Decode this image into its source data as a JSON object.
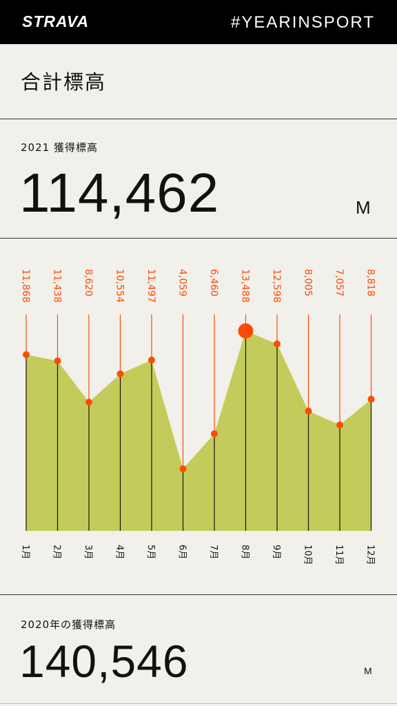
{
  "header": {
    "logo_text": "STRAVA",
    "hashtag": "#YEARINSPORT"
  },
  "section_title": "合計標高",
  "current": {
    "label": "2021 獲得標高",
    "value": "114,462",
    "unit": "M"
  },
  "previous": {
    "label": "2020年の獲得標高",
    "value": "140,546",
    "unit": "M"
  },
  "colors": {
    "accent": "#fc4c02",
    "area_fill": "#c3cc5a",
    "background": "#f2f0eb",
    "topbar": "#000000"
  },
  "chart_data": {
    "type": "area",
    "categories": [
      "1月",
      "2月",
      "3月",
      "4月",
      "5月",
      "6月",
      "7月",
      "8月",
      "9月",
      "10月",
      "11月",
      "12月"
    ],
    "values": [
      11868,
      11438,
      8620,
      10554,
      11497,
      4059,
      6460,
      13488,
      12598,
      8005,
      7057,
      8818
    ],
    "value_labels": [
      "11,868",
      "11,438",
      "8,620",
      "10,554",
      "11,497",
      "4,059",
      "6,460",
      "13,488",
      "12,598",
      "8,005",
      "7,057",
      "8,818"
    ],
    "highlight_index": 7,
    "title": "",
    "xlabel": "",
    "ylabel": "",
    "grid": false
  }
}
